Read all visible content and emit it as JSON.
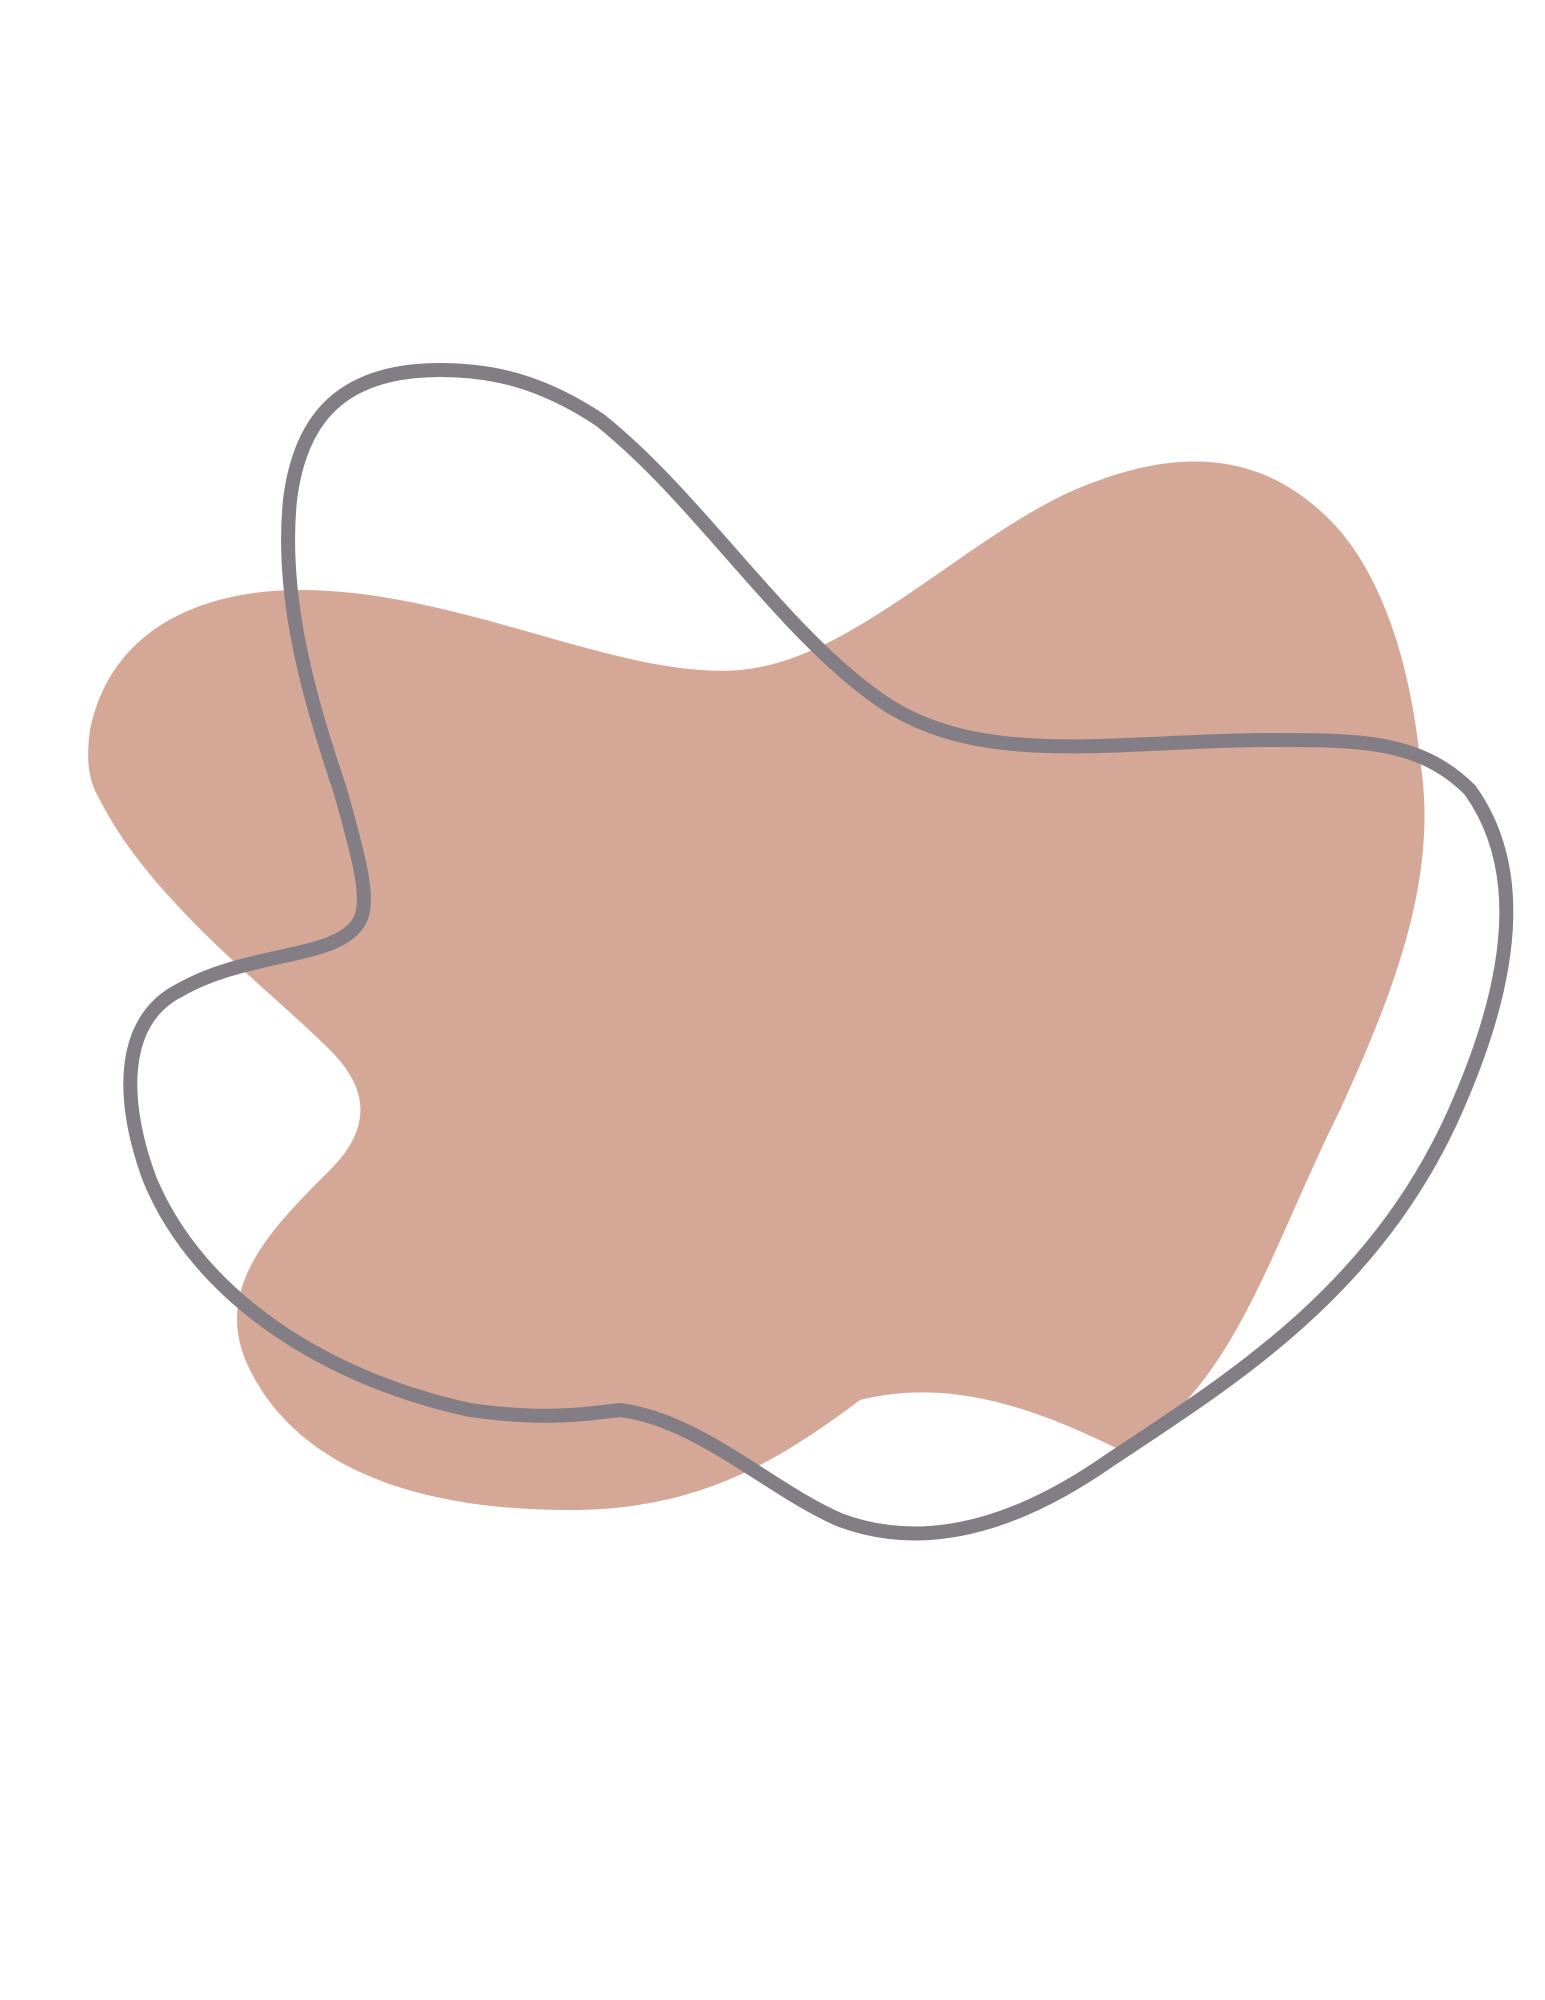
{
  "artwork": {
    "background_color": "#ffffff",
    "shapes": [
      {
        "name": "filled-blob",
        "kind": "filled-organic-shape",
        "color": "#d5a797"
      },
      {
        "name": "outline-blob",
        "kind": "outlined-organic-shape",
        "color": "#837d86"
      }
    ]
  }
}
